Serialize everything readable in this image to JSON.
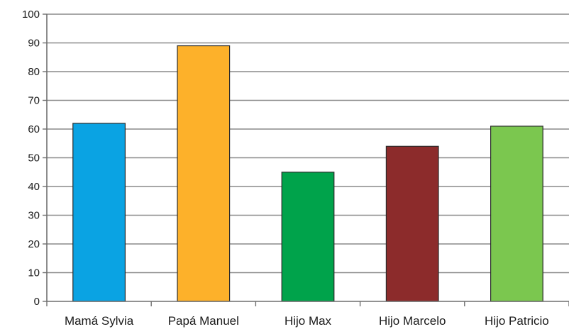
{
  "chart_data": {
    "type": "bar",
    "title": "",
    "xlabel": "",
    "ylabel": "",
    "categories": [
      "Mamá Sylvia",
      "Papá Manuel",
      "Hijo Max",
      "Hijo Marcelo",
      "Hijo Patricio"
    ],
    "values": [
      62,
      89,
      45,
      54,
      61
    ],
    "colors": [
      "#0aa3e3",
      "#fdb12a",
      "#00a34b",
      "#8c2b2b",
      "#7bc74f"
    ],
    "ylim": [
      0,
      100
    ],
    "yticks": [
      0,
      10,
      20,
      30,
      40,
      50,
      60,
      70,
      80,
      90,
      100
    ],
    "ytick_labels": [
      "0",
      "10",
      "20",
      "30",
      "40",
      "50",
      "60",
      "70",
      "80",
      "90",
      "100"
    ],
    "grid": true,
    "legend": "none"
  }
}
